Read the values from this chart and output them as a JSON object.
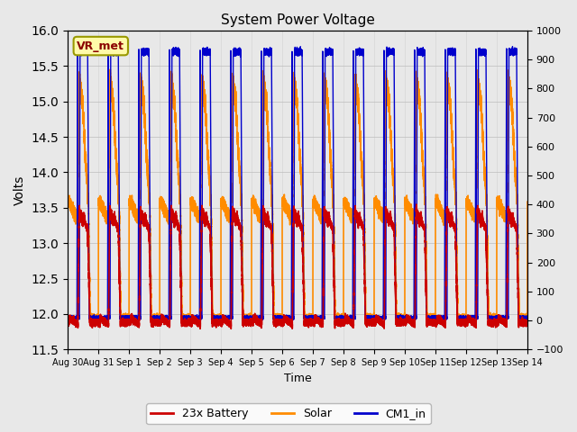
{
  "title": "System Power Voltage",
  "xlabel": "Time",
  "ylabel_left": "Volts",
  "ylim_left": [
    11.5,
    16.0
  ],
  "ylim_right": [
    -100,
    1000
  ],
  "yticks_left": [
    11.5,
    12.0,
    12.5,
    13.0,
    13.5,
    14.0,
    14.5,
    15.0,
    15.5,
    16.0
  ],
  "yticks_right": [
    -100,
    0,
    100,
    200,
    300,
    400,
    500,
    600,
    700,
    800,
    900,
    1000
  ],
  "annotation_text": "VR_met",
  "annotation_color": "#8B0000",
  "annotation_bg": "#FFFAAA",
  "annotation_border": "#999900",
  "legend_entries": [
    "23x Battery",
    "Solar",
    "CM1_in"
  ],
  "legend_colors": [
    "#CC0000",
    "#FF8C00",
    "#0000CC"
  ],
  "line_colors": {
    "battery": "#CC0000",
    "solar": "#FF8C00",
    "cm1": "#0000CC"
  },
  "tick_labels": [
    "Aug 30",
    "Aug 31",
    "Sep 1",
    "Sep 2",
    "Sep 3",
    "Sep 4",
    "Sep 5",
    "Sep 6",
    "Sep 7",
    "Sep 8",
    "Sep 9",
    "Sep 10",
    "Sep 11",
    "Sep 12",
    "Sep 13",
    "Sep 14"
  ],
  "bg_color": "#E8E8E8",
  "fig_color": "#E8E8E8",
  "grid_color": "#BBBBBB"
}
